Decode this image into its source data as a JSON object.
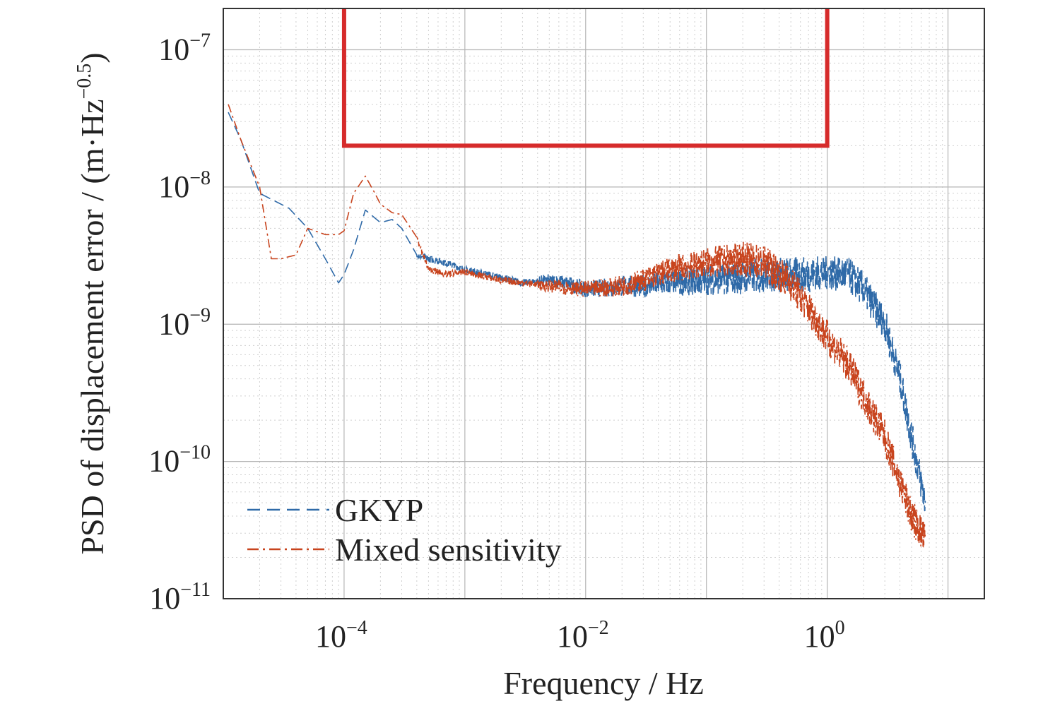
{
  "chart_data": {
    "type": "line",
    "xlabel": "Frequency / Hz",
    "ylabel": {
      "text": "PSD of displacement error / (m·Hz",
      "exponent": "−0.5",
      "suffix": ")"
    },
    "x_scale": "log",
    "y_scale": "log",
    "xlim": [
      1e-05,
      20
    ],
    "ylim": [
      1e-11,
      2e-07
    ],
    "grid": true,
    "legend_position": "bottom-left",
    "x_ticks": [
      {
        "value": 0.0001,
        "base": "10",
        "exp": "−4"
      },
      {
        "value": 0.01,
        "base": "10",
        "exp": "−2"
      },
      {
        "value": 1,
        "base": "10",
        "exp": "0"
      }
    ],
    "y_ticks": [
      {
        "value": 1e-07,
        "base": "10",
        "exp": "−7"
      },
      {
        "value": 1e-08,
        "base": "10",
        "exp": "−8"
      },
      {
        "value": 1e-09,
        "base": "10",
        "exp": "−9"
      },
      {
        "value": 1e-10,
        "base": "10",
        "exp": "−10"
      },
      {
        "value": 1e-11,
        "base": "10",
        "exp": "−11"
      }
    ],
    "requirement_bound": {
      "color": "#d62b2b",
      "x_range": [
        0.0001,
        1
      ],
      "y_floor": 2e-08
    },
    "series": [
      {
        "name": "GKYP",
        "color": "#2f6aa8",
        "dash": "dashed",
        "x": [
          1.1e-05,
          1.4e-05,
          2e-05,
          3.5e-05,
          5e-05,
          7e-05,
          9e-05,
          0.0001,
          0.00012,
          0.00015,
          0.0002,
          0.00025,
          0.0003,
          0.0004,
          0.0005,
          0.0007,
          0.001,
          0.002,
          0.003,
          0.005,
          0.007,
          0.01,
          0.02,
          0.03,
          0.05,
          0.1,
          0.2,
          0.3,
          0.5,
          0.7,
          1,
          1.5,
          2,
          3,
          4,
          5,
          6.5
        ],
        "y": [
          3.5e-08,
          2.2e-08,
          9e-09,
          7e-09,
          5e-09,
          3e-09,
          2e-09,
          2.3e-09,
          3.5e-09,
          6.8e-09,
          5.5e-09,
          5.8e-09,
          5e-09,
          3.2e-09,
          3e-09,
          2.8e-09,
          2.5e-09,
          2.2e-09,
          2e-09,
          2.1e-09,
          2e-09,
          1.8e-09,
          1.9e-09,
          1.9e-09,
          2e-09,
          2.1e-09,
          2.2e-09,
          2.3e-09,
          2.3e-09,
          2.3e-09,
          2.4e-09,
          2.3e-09,
          1.8e-09,
          1e-09,
          4e-10,
          1.5e-10,
          5e-11
        ]
      },
      {
        "name": "Mixed sensitivity",
        "color": "#c8441e",
        "dash": "dash-dot",
        "x": [
          1.1e-05,
          1.4e-05,
          2e-05,
          2.5e-05,
          3e-05,
          4e-05,
          5e-05,
          7e-05,
          9e-05,
          0.0001,
          0.00012,
          0.00015,
          0.00018,
          0.0002,
          0.00025,
          0.0003,
          0.0004,
          0.0005,
          0.0007,
          0.001,
          0.002,
          0.003,
          0.005,
          0.01,
          0.02,
          0.03,
          0.05,
          0.1,
          0.2,
          0.3,
          0.5,
          0.7,
          1,
          1.5,
          2,
          3,
          4,
          5,
          6.5
        ],
        "y": [
          4e-08,
          2.2e-08,
          1e-08,
          3e-09,
          3e-09,
          3.2e-09,
          5e-09,
          4.5e-09,
          4.5e-09,
          4.8e-09,
          9e-09,
          1.2e-08,
          9e-09,
          7.5e-09,
          6.5e-09,
          6.3e-09,
          4.3e-09,
          2.5e-09,
          2.3e-09,
          2.4e-09,
          2.1e-09,
          2e-09,
          1.9e-09,
          1.8e-09,
          1.9e-09,
          2.1e-09,
          2.5e-09,
          2.8e-09,
          3e-09,
          2.8e-09,
          2e-09,
          1.3e-09,
          8e-10,
          5e-10,
          3e-10,
          1.5e-10,
          7e-11,
          4e-11,
          2.7e-11
        ]
      }
    ]
  }
}
